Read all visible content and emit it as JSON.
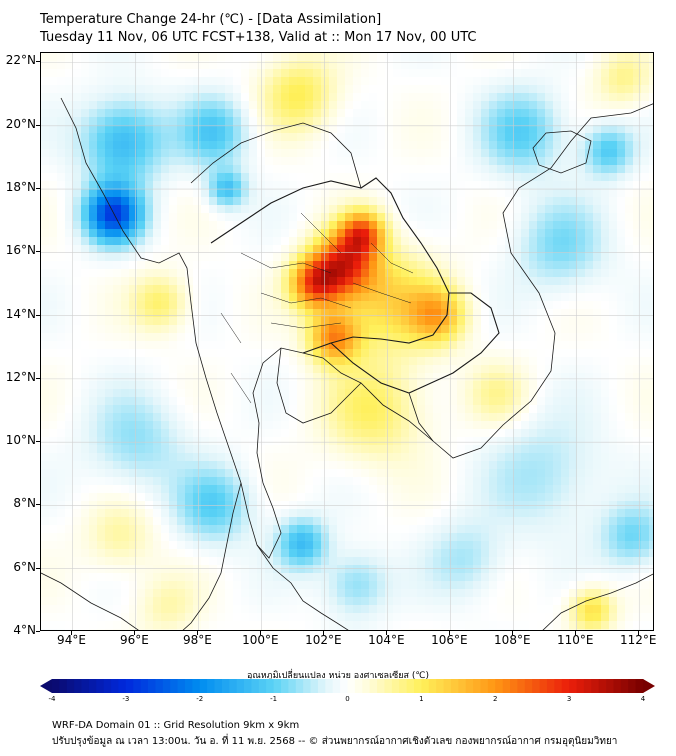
{
  "title": {
    "line1": "Temperature Change 24-hr (℃) - [Data Assimilation]",
    "line2": "Tuesday 11 Nov, 06 UTC FCST+138, Valid at :: Mon 17 Nov, 00 UTC"
  },
  "axes": {
    "lat_labels": [
      "22°N",
      "20°N",
      "18°N",
      "16°N",
      "14°N",
      "12°N",
      "10°N",
      "8°N",
      "6°N",
      "4°N"
    ],
    "lon_labels": [
      "94°E",
      "96°E",
      "98°E",
      "100°E",
      "102°E",
      "104°E",
      "106°E",
      "108°E",
      "110°E",
      "112°E"
    ],
    "lat_range": [
      4,
      22.3
    ],
    "lon_range": [
      93,
      112.5
    ]
  },
  "colorbar": {
    "title": "อุณหภูมิเปลี่ยนแปลง หน่วย องศาเซลเซียส (℃)",
    "labels": [
      "-4",
      "-3",
      "-2",
      "-1",
      "0",
      "1",
      "2",
      "3",
      "4"
    ],
    "range": [
      -4,
      4
    ]
  },
  "footer": {
    "line1": "WRF-DA Domain 01 :: Grid Resolution 9km x 9km",
    "line2": "ปรับปรุงข้อมูล ณ เวลา 13:00น. วัน อ. ที่ 11 พ.ย. 2568 -- © ส่วนพยากรณ์อากาศเชิงตัวเลข กองพยากรณ์อากาศ กรมอุตุนิยมวิทยา"
  },
  "field": {
    "anomalies": [
      {
        "lon": 95.3,
        "lat": 17.2,
        "value": -2.7,
        "spread": 0.9
      },
      {
        "lon": 95.6,
        "lat": 19.5,
        "value": -1.4,
        "spread": 1.3
      },
      {
        "lon": 98.5,
        "lat": 19.8,
        "value": -1.1,
        "spread": 1.1
      },
      {
        "lon": 98.9,
        "lat": 18.0,
        "value": -1.2,
        "spread": 0.6
      },
      {
        "lon": 102.6,
        "lat": 15.6,
        "value": 2.6,
        "spread": 1.0
      },
      {
        "lon": 101.7,
        "lat": 15.0,
        "value": 2.3,
        "spread": 0.8
      },
      {
        "lon": 103.2,
        "lat": 16.6,
        "value": 2.2,
        "spread": 0.7
      },
      {
        "lon": 102.3,
        "lat": 13.3,
        "value": 2.0,
        "spread": 0.8
      },
      {
        "lon": 105.6,
        "lat": 14.0,
        "value": 1.5,
        "spread": 0.9
      },
      {
        "lon": 104.0,
        "lat": 14.5,
        "value": 1.2,
        "spread": 1.6
      },
      {
        "lon": 103.6,
        "lat": 11.0,
        "value": 0.9,
        "spread": 1.6
      },
      {
        "lon": 101.2,
        "lat": 21.0,
        "value": 1.0,
        "spread": 1.2
      },
      {
        "lon": 96.8,
        "lat": 14.4,
        "value": 0.9,
        "spread": 0.9
      },
      {
        "lon": 108.3,
        "lat": 19.8,
        "value": -1.0,
        "spread": 1.3
      },
      {
        "lon": 109.5,
        "lat": 16.2,
        "value": -0.8,
        "spread": 1.4
      },
      {
        "lon": 111.0,
        "lat": 19.2,
        "value": -1.1,
        "spread": 0.8
      },
      {
        "lon": 111.5,
        "lat": 21.5,
        "value": 0.7,
        "spread": 0.9
      },
      {
        "lon": 96.0,
        "lat": 10.0,
        "value": -0.7,
        "spread": 1.5
      },
      {
        "lon": 98.5,
        "lat": 8.0,
        "value": -1.0,
        "spread": 1.2
      },
      {
        "lon": 101.3,
        "lat": 6.8,
        "value": -1.3,
        "spread": 0.8
      },
      {
        "lon": 103.0,
        "lat": 5.5,
        "value": -0.8,
        "spread": 1.0
      },
      {
        "lon": 109.0,
        "lat": 9.0,
        "value": -0.6,
        "spread": 1.8
      },
      {
        "lon": 111.8,
        "lat": 7.0,
        "value": -0.9,
        "spread": 1.0
      },
      {
        "lon": 106.5,
        "lat": 6.3,
        "value": -0.6,
        "spread": 1.2
      },
      {
        "lon": 110.5,
        "lat": 4.7,
        "value": 1.2,
        "spread": 0.7
      },
      {
        "lon": 95.5,
        "lat": 7.0,
        "value": 0.6,
        "spread": 1.1
      },
      {
        "lon": 97.0,
        "lat": 4.8,
        "value": 0.5,
        "spread": 1.0
      },
      {
        "lon": 107.5,
        "lat": 11.5,
        "value": 0.6,
        "spread": 1.0
      }
    ]
  },
  "colors": {
    "frame": "#000000",
    "grid": "#cfcfcf",
    "border": "#1a1a1a"
  }
}
